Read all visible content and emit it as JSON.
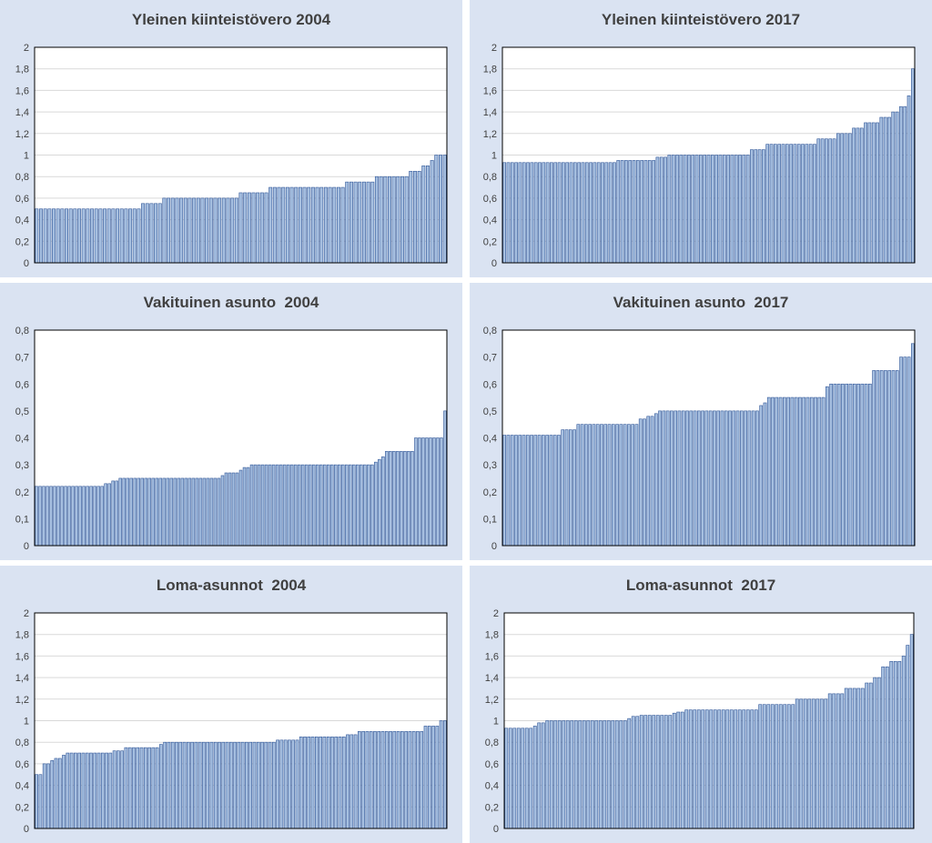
{
  "colors": {
    "panel_background": "#dae3f2",
    "plot_background": "#ffffff",
    "bar_fill": "#a6bfe0",
    "bar_edge": "#2f5597",
    "gridline": "#d9d9d9",
    "plot_border": "#000000",
    "text": "#404040"
  },
  "chart_data": [
    {
      "type": "bar",
      "title": "Yleinen kiinteistövero 2004",
      "xlabel": "",
      "ylabel": "",
      "ylim": [
        0,
        2
      ],
      "yticks": [
        "0",
        "0,2",
        "0,4",
        "0,6",
        "0,8",
        "1",
        "1,2",
        "1,4",
        "1,6",
        "1,8",
        "2"
      ],
      "grid": true,
      "legend": "none",
      "steps": [
        [
          25,
          0.5
        ],
        [
          5,
          0.55
        ],
        [
          18,
          0.6
        ],
        [
          7,
          0.65
        ],
        [
          18,
          0.7
        ],
        [
          7,
          0.75
        ],
        [
          8,
          0.8
        ],
        [
          3,
          0.85
        ],
        [
          2,
          0.9
        ],
        [
          1,
          0.95
        ],
        [
          3,
          1.0
        ]
      ]
    },
    {
      "type": "bar",
      "title": "Yleinen kiinteistövero 2017",
      "xlabel": "",
      "ylabel": "",
      "ylim": [
        0,
        2
      ],
      "yticks": [
        "0",
        "0,2",
        "0,4",
        "0,6",
        "0,8",
        "1",
        "1,2",
        "1,4",
        "1,6",
        "1,8",
        "2"
      ],
      "grid": true,
      "legend": "none",
      "steps": [
        [
          29,
          0.93
        ],
        [
          10,
          0.95
        ],
        [
          3,
          0.98
        ],
        [
          21,
          1.0
        ],
        [
          4,
          1.05
        ],
        [
          13,
          1.1
        ],
        [
          5,
          1.15
        ],
        [
          4,
          1.2
        ],
        [
          3,
          1.25
        ],
        [
          4,
          1.3
        ],
        [
          3,
          1.35
        ],
        [
          2,
          1.4
        ],
        [
          2,
          1.45
        ],
        [
          1,
          1.55
        ],
        [
          1,
          1.8
        ]
      ]
    },
    {
      "type": "bar",
      "title": "Vakituinen asunto  2004",
      "xlabel": "",
      "ylabel": "",
      "ylim": [
        0,
        0.8
      ],
      "yticks": [
        "0",
        "0,1",
        "0,2",
        "0,3",
        "0,4",
        "0,5",
        "0,6",
        "0,7",
        "0,8"
      ],
      "grid": false,
      "legend": "none",
      "steps": [
        [
          19,
          0.22
        ],
        [
          2,
          0.23
        ],
        [
          2,
          0.24
        ],
        [
          28,
          0.25
        ],
        [
          1,
          0.26
        ],
        [
          4,
          0.27
        ],
        [
          1,
          0.28
        ],
        [
          2,
          0.29
        ],
        [
          34,
          0.3
        ],
        [
          1,
          0.31
        ],
        [
          1,
          0.32
        ],
        [
          1,
          0.33
        ],
        [
          8,
          0.35
        ],
        [
          8,
          0.4
        ],
        [
          1,
          0.5
        ]
      ]
    },
    {
      "type": "bar",
      "title": "Vakituinen asunto  2017",
      "xlabel": "",
      "ylabel": "",
      "ylim": [
        0,
        0.8
      ],
      "yticks": [
        "0",
        "0,1",
        "0,2",
        "0,3",
        "0,4",
        "0,5",
        "0,6",
        "0,7",
        "0,8"
      ],
      "grid": false,
      "legend": "none",
      "steps": [
        [
          15,
          0.41
        ],
        [
          4,
          0.43
        ],
        [
          16,
          0.45
        ],
        [
          2,
          0.47
        ],
        [
          2,
          0.48
        ],
        [
          1,
          0.49
        ],
        [
          26,
          0.5
        ],
        [
          1,
          0.52
        ],
        [
          1,
          0.53
        ],
        [
          15,
          0.55
        ],
        [
          1,
          0.59
        ],
        [
          11,
          0.6
        ],
        [
          7,
          0.65
        ],
        [
          3,
          0.7
        ],
        [
          1,
          0.75
        ]
      ]
    },
    {
      "type": "bar",
      "title": "Loma-asunnot  2004",
      "xlabel": "",
      "ylabel": "",
      "ylim": [
        0,
        2
      ],
      "yticks": [
        "0",
        "0,2",
        "0,4",
        "0,6",
        "0,8",
        "1",
        "1,2",
        "1,4",
        "1,6",
        "1,8",
        "2"
      ],
      "grid": true,
      "legend": "none",
      "steps": [
        [
          2,
          0.5
        ],
        [
          2,
          0.6
        ],
        [
          1,
          0.63
        ],
        [
          2,
          0.65
        ],
        [
          1,
          0.68
        ],
        [
          12,
          0.7
        ],
        [
          3,
          0.72
        ],
        [
          9,
          0.75
        ],
        [
          1,
          0.78
        ],
        [
          29,
          0.8
        ],
        [
          6,
          0.82
        ],
        [
          12,
          0.85
        ],
        [
          3,
          0.87
        ],
        [
          17,
          0.9
        ],
        [
          4,
          0.95
        ],
        [
          2,
          1.0
        ]
      ]
    },
    {
      "type": "bar",
      "title": "Loma-asunnot  2017",
      "xlabel": "",
      "ylabel": "",
      "ylim": [
        0,
        2
      ],
      "yticks": [
        "0",
        "0,2",
        "0,4",
        "0,6",
        "0,8",
        "1",
        "1,2",
        "1,4",
        "1,6",
        "1,8",
        "2"
      ],
      "grid": true,
      "legend": "none",
      "steps": [
        [
          7,
          0.93
        ],
        [
          1,
          0.95
        ],
        [
          2,
          0.98
        ],
        [
          20,
          1.0
        ],
        [
          1,
          1.02
        ],
        [
          2,
          1.04
        ],
        [
          8,
          1.05
        ],
        [
          1,
          1.07
        ],
        [
          2,
          1.08
        ],
        [
          18,
          1.1
        ],
        [
          9,
          1.15
        ],
        [
          8,
          1.2
        ],
        [
          4,
          1.25
        ],
        [
          5,
          1.3
        ],
        [
          2,
          1.35
        ],
        [
          2,
          1.4
        ],
        [
          2,
          1.5
        ],
        [
          3,
          1.55
        ],
        [
          1,
          1.6
        ],
        [
          1,
          1.7
        ],
        [
          1,
          1.8
        ]
      ]
    }
  ]
}
